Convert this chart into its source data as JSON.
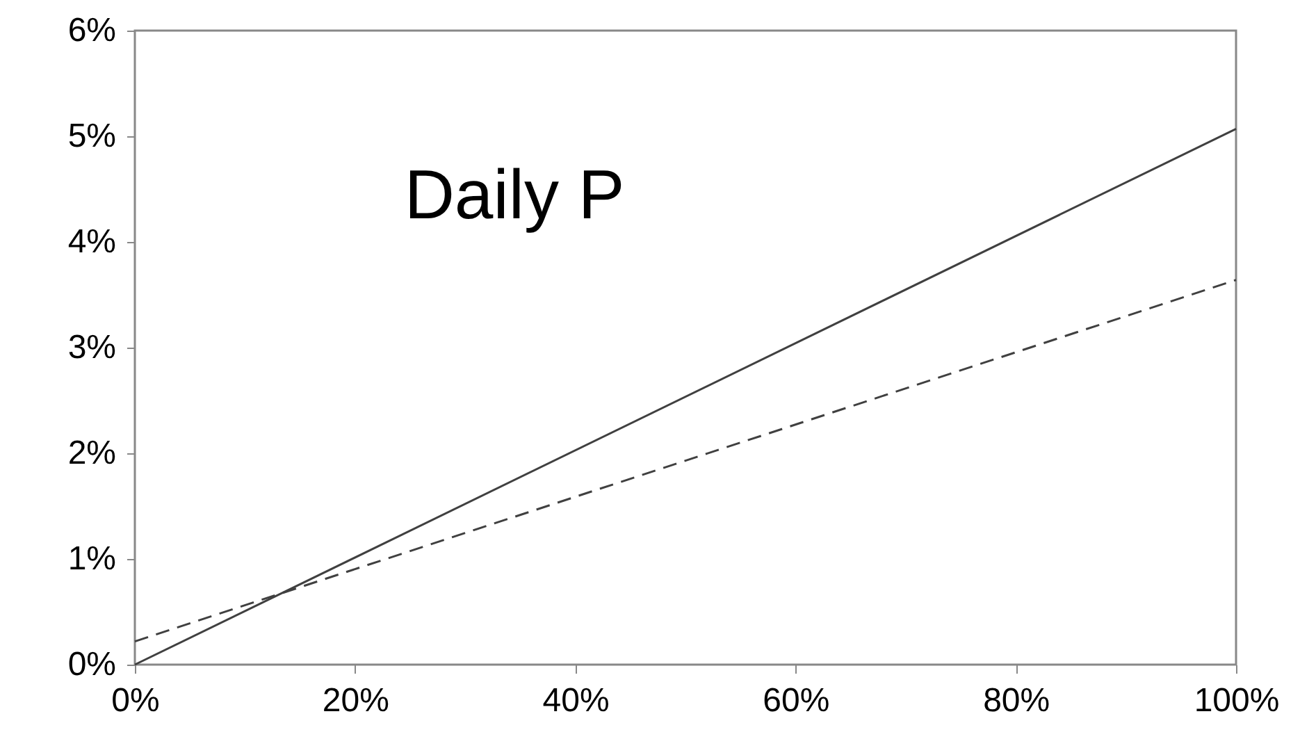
{
  "chart_data": {
    "type": "line",
    "annotations": [
      "Daily P"
    ],
    "x": [
      0,
      100
    ],
    "series": [
      {
        "color": "#404040",
        "line_style": "solid",
        "values": [
          0,
          5.07
        ]
      },
      {
        "color": "#404040",
        "line_style": "dashed",
        "values": [
          0.22,
          3.64
        ]
      }
    ],
    "xlim": [
      0,
      100
    ],
    "xticks": [
      {
        "value": 0,
        "label": "0%"
      },
      {
        "value": 20,
        "label": "20%"
      },
      {
        "value": 40,
        "label": "40%"
      },
      {
        "value": 60,
        "label": "60%"
      },
      {
        "value": 80,
        "label": "80%"
      },
      {
        "value": 100,
        "label": "100%"
      }
    ],
    "ylim": [
      0,
      6
    ],
    "yticks": [
      {
        "value": 0,
        "label": "0%"
      },
      {
        "value": 1,
        "label": "1%"
      },
      {
        "value": 2,
        "label": "2%"
      },
      {
        "value": 3,
        "label": "3%"
      },
      {
        "value": 4,
        "label": "4%"
      },
      {
        "value": 5,
        "label": "5%"
      },
      {
        "value": 6,
        "label": "6%"
      }
    ],
    "grid": false,
    "marker": "none"
  }
}
